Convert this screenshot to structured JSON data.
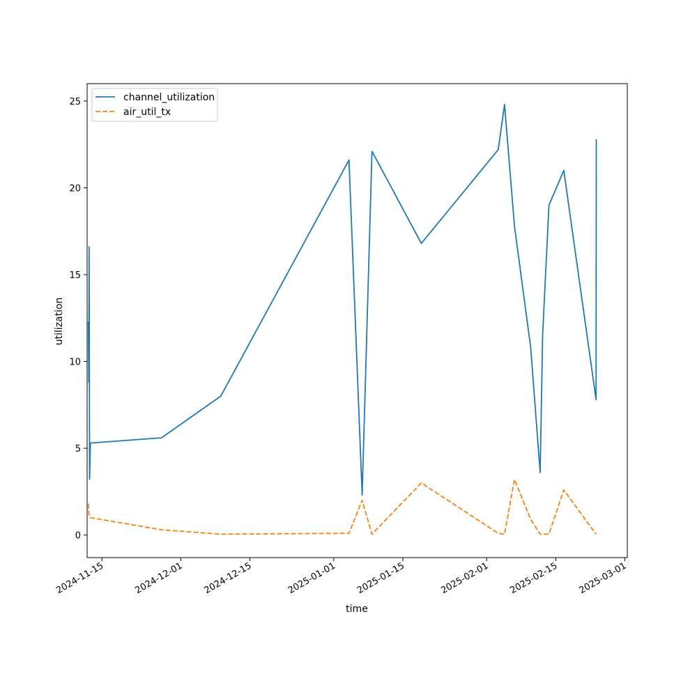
{
  "chart_data": {
    "type": "line",
    "title": "",
    "xlabel": "time",
    "ylabel": "utilization",
    "x_type": "date",
    "xlim": [
      "2024-11-10",
      "2025-03-01"
    ],
    "ylim": [
      -1.3,
      26
    ],
    "x_ticks": [
      "2024-11-15",
      "2024-12-01",
      "2024-12-15",
      "2025-01-01",
      "2025-01-15",
      "2025-02-01",
      "2025-02-15",
      "2025-03-01"
    ],
    "y_ticks": [
      0,
      5,
      10,
      15,
      20,
      25
    ],
    "grid": false,
    "legend": "upper left",
    "series": [
      {
        "name": "channel_utilization",
        "color": "#1f77b4",
        "dash": "solid",
        "points": [
          [
            "2024-11-12 06:00",
            12.3
          ],
          [
            "2024-11-12 08:00",
            8.8
          ],
          [
            "2024-11-12 10:00",
            16.6
          ],
          [
            "2024-11-12 12:00",
            3.2
          ],
          [
            "2024-11-12 16:00",
            5.3
          ],
          [
            "2024-11-27 02:00",
            5.6
          ],
          [
            "2024-12-09 02:00",
            8.0
          ],
          [
            "2025-01-04 02:00",
            21.6
          ],
          [
            "2025-01-06 18:00",
            2.3
          ],
          [
            "2025-01-08 18:00",
            22.1
          ],
          [
            "2025-01-18 18:00",
            16.8
          ],
          [
            "2025-02-03 08:00",
            22.2
          ],
          [
            "2025-02-04 15:00",
            24.8
          ],
          [
            "2025-02-06 15:00",
            17.8
          ],
          [
            "2025-02-09 22:00",
            10.8
          ],
          [
            "2025-02-11 20:00",
            3.6
          ],
          [
            "2025-02-12 08:00",
            11.5
          ],
          [
            "2025-02-13 15:00",
            19.0
          ],
          [
            "2025-02-16 15:00",
            21.0
          ],
          [
            "2025-02-23 04:00",
            7.8
          ],
          [
            "2025-02-23 05:00",
            22.8
          ]
        ]
      },
      {
        "name": "air_util_tx",
        "color": "#ff7f0e",
        "dash": "dashed",
        "points": [
          [
            "2024-11-12 06:00",
            1.8
          ],
          [
            "2024-11-12 10:00",
            1.1
          ],
          [
            "2024-11-12 16:00",
            1.0
          ],
          [
            "2024-11-27 02:00",
            0.3
          ],
          [
            "2024-12-09 02:00",
            0.05
          ],
          [
            "2025-01-04 02:00",
            0.1
          ],
          [
            "2025-01-06 18:00",
            2.0
          ],
          [
            "2025-01-08 18:00",
            0.05
          ],
          [
            "2025-01-18 18:00",
            3.0
          ],
          [
            "2025-02-03 08:00",
            0.1
          ],
          [
            "2025-02-04 15:00",
            0.05
          ],
          [
            "2025-02-06 15:00",
            3.2
          ],
          [
            "2025-02-09 22:00",
            0.9
          ],
          [
            "2025-02-11 20:00",
            0.05
          ],
          [
            "2025-02-13 15:00",
            0.05
          ],
          [
            "2025-02-16 15:00",
            2.6
          ],
          [
            "2025-02-23 04:00",
            0.05
          ]
        ]
      }
    ]
  }
}
